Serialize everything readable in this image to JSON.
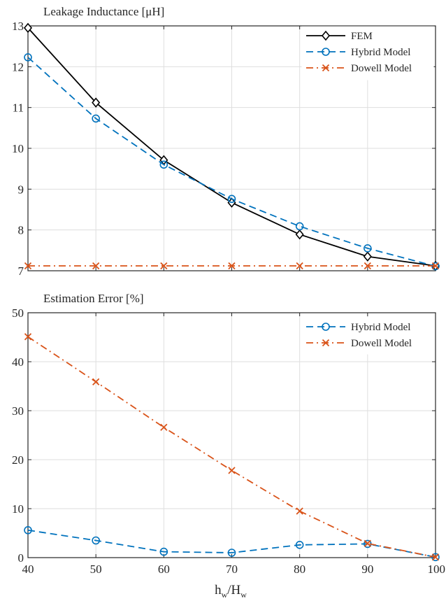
{
  "chart_data": [
    {
      "type": "line",
      "title": "Leakage Inductance [μH]",
      "xlabel": "",
      "ylabel": "",
      "x": [
        40,
        50,
        60,
        70,
        80,
        90,
        100
      ],
      "xlim": [
        40,
        100
      ],
      "ylim": [
        7,
        13
      ],
      "xticks": [
        "40",
        "50",
        "60",
        "70",
        "80",
        "90",
        "100"
      ],
      "yticks": [
        "7",
        "8",
        "9",
        "10",
        "11",
        "12",
        "13"
      ],
      "grid": true,
      "legend_position": "top-right",
      "series": [
        {
          "name": "FEM",
          "values": [
            12.95,
            11.12,
            9.71,
            8.67,
            7.89,
            7.35,
            7.12
          ],
          "color": "#000000",
          "dash": "solid",
          "marker": "diamond"
        },
        {
          "name": "Hybrid Model",
          "values": [
            12.23,
            10.73,
            9.6,
            8.76,
            8.09,
            7.55,
            7.11
          ],
          "color": "#0072BD",
          "dash": "dashed",
          "marker": "circle"
        },
        {
          "name": "Dowell Model",
          "values": [
            7.12,
            7.12,
            7.12,
            7.12,
            7.12,
            7.12,
            7.12
          ],
          "color": "#D95319",
          "dash": "dashdot",
          "marker": "x"
        }
      ]
    },
    {
      "type": "line",
      "title": "Estimation Error [%]",
      "xlabel": "h_w/H_w",
      "ylabel": "",
      "x": [
        40,
        50,
        60,
        70,
        80,
        90,
        100
      ],
      "xlim": [
        40,
        100
      ],
      "ylim": [
        0,
        50
      ],
      "xticks": [
        "40",
        "50",
        "60",
        "70",
        "80",
        "90",
        "100"
      ],
      "yticks": [
        "0",
        "10",
        "20",
        "30",
        "40",
        "50"
      ],
      "grid": true,
      "legend_position": "top-right",
      "series": [
        {
          "name": "Hybrid Model",
          "values": [
            5.6,
            3.5,
            1.2,
            1.0,
            2.6,
            2.8,
            0.1
          ],
          "color": "#0072BD",
          "dash": "dashed",
          "marker": "circle"
        },
        {
          "name": "Dowell Model",
          "values": [
            45.1,
            35.9,
            26.6,
            17.8,
            9.5,
            2.9,
            0.1
          ],
          "color": "#D95319",
          "dash": "dashdot",
          "marker": "x"
        }
      ]
    }
  ],
  "xlabel_parts": {
    "main1": "h",
    "sub1": "w",
    "sep": "/H",
    "sub2": "w"
  }
}
